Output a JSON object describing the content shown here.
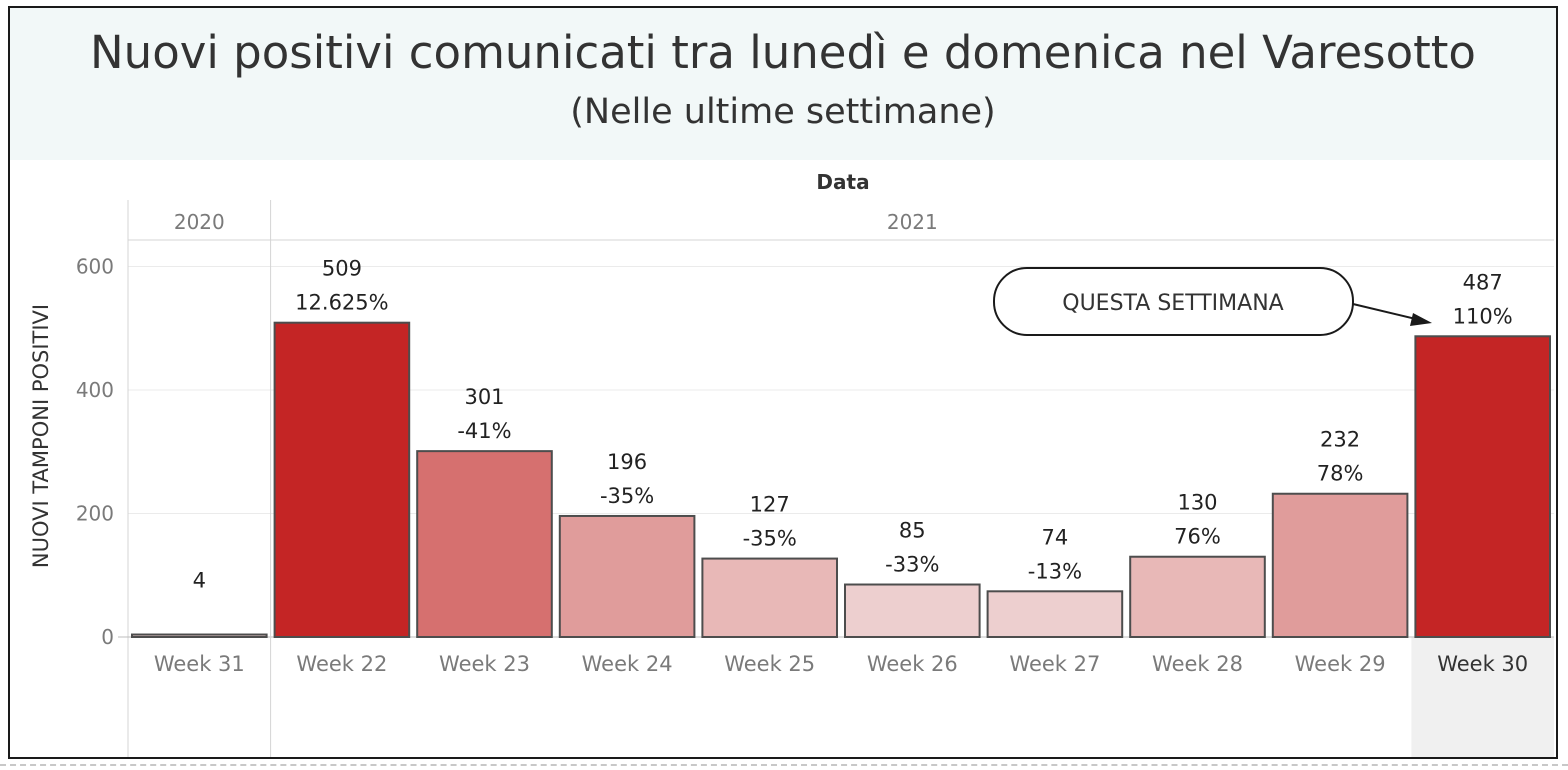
{
  "title": "Nuovi positivi comunicati tra lunedì e domenica nel Varesotto",
  "subtitle": "(Nelle ultime settimane)",
  "colors": {
    "max": "#c42525",
    "high": "#d6706f",
    "mid": "#e09c9b",
    "low": "#e8b8b7",
    "lowest": "#edcfcf",
    "highlight_column": "#f0f0f0"
  },
  "chart_data": {
    "type": "bar",
    "header": "Data",
    "ylabel": "NUOVI TAMPONI POSITIVI",
    "ylim": [
      0,
      650
    ],
    "yticks": [
      0,
      200,
      400,
      600
    ],
    "grid": true,
    "groups": [
      {
        "label": "2020",
        "count": 1
      },
      {
        "label": "2021",
        "count": 9
      }
    ],
    "categories": [
      "Week 31",
      "Week 22",
      "Week 23",
      "Week 24",
      "Week 25",
      "Week 26",
      "Week 27",
      "Week 28",
      "Week 29",
      "Week 30"
    ],
    "values": [
      4,
      509,
      301,
      196,
      127,
      85,
      74,
      130,
      232,
      487
    ],
    "pct_labels": [
      "",
      "12.625%",
      "-41%",
      "-35%",
      "-35%",
      "-33%",
      "-13%",
      "76%",
      "78%",
      "110%"
    ],
    "highlight_category": "Week 30",
    "annotation": {
      "text": "QUESTA SETTIMANA",
      "target": "Week 30"
    }
  }
}
